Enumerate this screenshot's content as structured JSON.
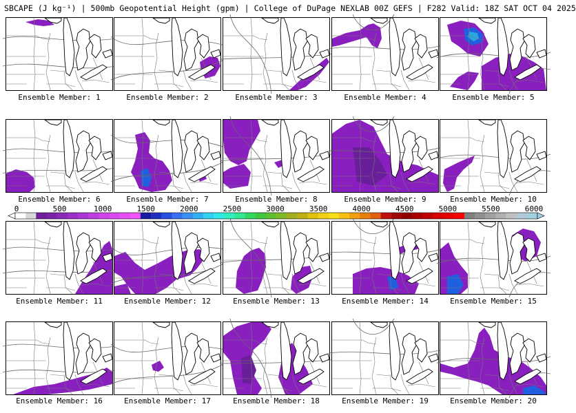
{
  "title": "SBCAPE (J kg⁻¹) | 500mb Geopotential Height (gpm) | College of DuPage NEXLAB 00Z GEFS | F282 Valid: 18Z SAT OCT 04 2025",
  "caption_prefix": "Ensemble Member: ",
  "members": [
    {
      "number": "1"
    },
    {
      "number": "2"
    },
    {
      "number": "3"
    },
    {
      "number": "4"
    },
    {
      "number": "5"
    },
    {
      "number": "6"
    },
    {
      "number": "7"
    },
    {
      "number": "8"
    },
    {
      "number": "9"
    },
    {
      "number": "10"
    },
    {
      "number": "11"
    },
    {
      "number": "12"
    },
    {
      "number": "13"
    },
    {
      "number": "14"
    },
    {
      "number": "15"
    },
    {
      "number": "16"
    },
    {
      "number": "17"
    },
    {
      "number": "18"
    },
    {
      "number": "19"
    },
    {
      "number": "20"
    }
  ],
  "colorbar": {
    "tick_labels": [
      "0",
      "500",
      "1000",
      "1500",
      "2000",
      "2500",
      "3000",
      "3500",
      "4000",
      "4500",
      "5000",
      "5500",
      "6000"
    ],
    "min": 0,
    "max": 6000,
    "colors": [
      "#ffffff",
      "#d8d8d8",
      "#6f1f9a",
      "#7b24a8",
      "#8a2ab8",
      "#9a30c8",
      "#aa36d6",
      "#bb3ee0",
      "#cc44ea",
      "#d84af0",
      "#e450f4",
      "#ee56f8",
      "#1a1aa0",
      "#2030c0",
      "#2a4ee0",
      "#3a70f0",
      "#3a90f0",
      "#30b0f0",
      "#30d0f0",
      "#30e8e8",
      "#30f0c0",
      "#30e890",
      "#30d860",
      "#3fc840",
      "#60c030",
      "#80b828",
      "#a0b020",
      "#c0b018",
      "#e0c010",
      "#f0d010",
      "#f8e010",
      "#f8c010",
      "#f0a010",
      "#e88010",
      "#e06010",
      "#c01010",
      "#a00808",
      "#900000",
      "#a80000",
      "#c00000",
      "#d80000",
      "#e80000",
      "#ff0000",
      "#808080",
      "#909090",
      "#a0a0a0",
      "#b0b0b0",
      "#c0c0c0",
      "#b0c8d8",
      "#a0d0e0"
    ]
  }
}
